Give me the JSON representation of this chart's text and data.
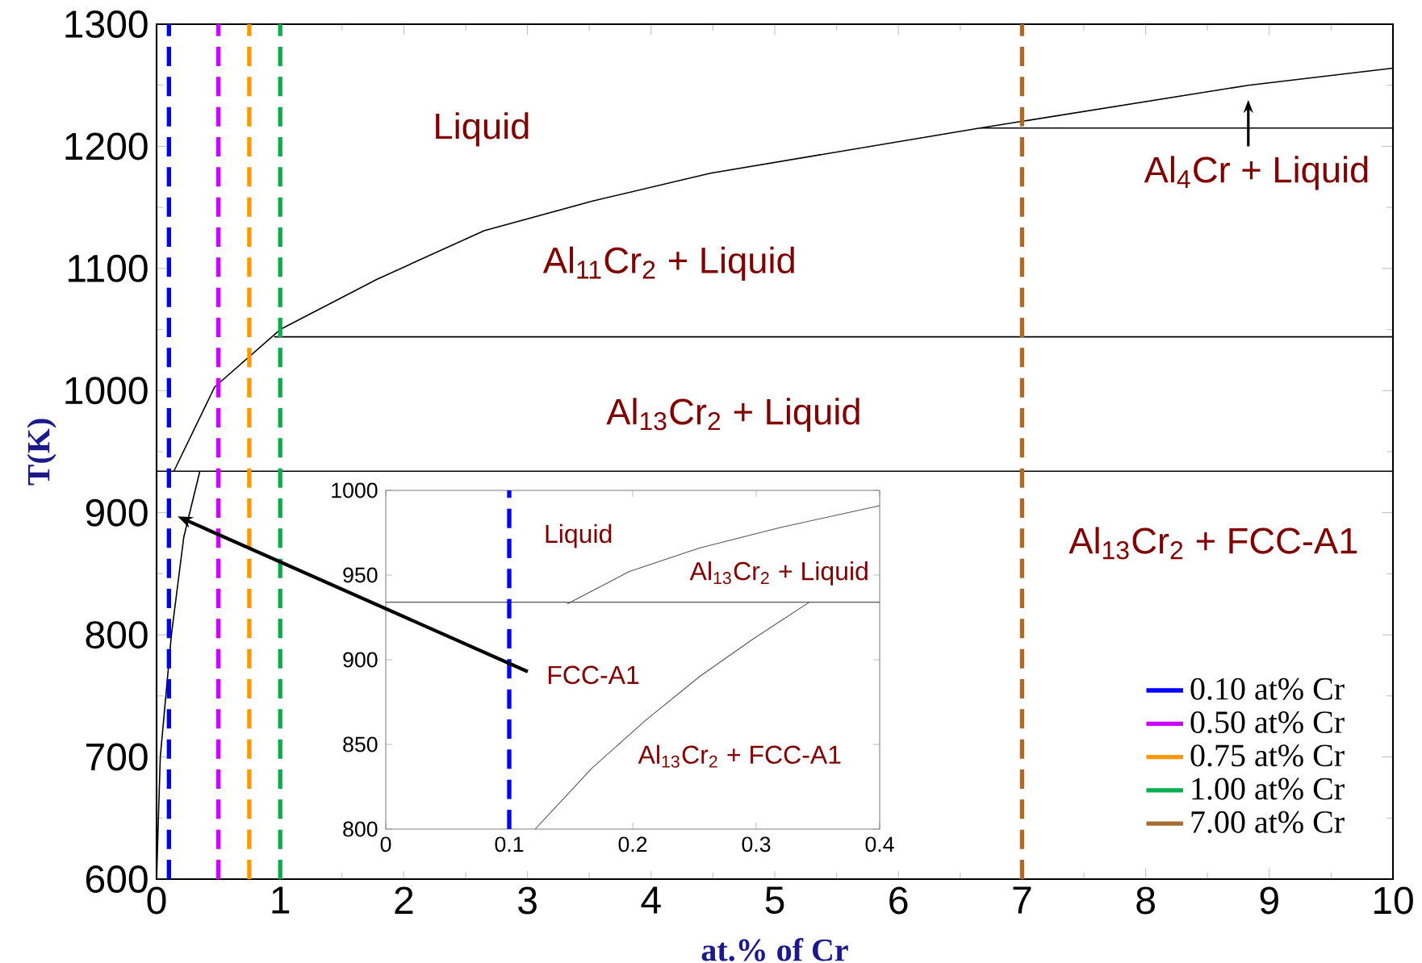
{
  "chart_data": [
    {
      "type": "line",
      "xlabel": "at.% of Cr",
      "ylabel": "T(K)",
      "xlim": [
        0,
        10
      ],
      "ylim": [
        600,
        1300
      ],
      "xticks": [
        0,
        1,
        2,
        3,
        4,
        5,
        6,
        7,
        8,
        9,
        10
      ],
      "yticks": [
        600,
        700,
        800,
        900,
        1000,
        1100,
        1200,
        1300
      ],
      "line_style": "solid",
      "marker": "none",
      "legend": "bottom right",
      "series": [
        {
          "color": "#000000",
          "x": [
            0.14,
            0.47,
            1.0,
            1.78,
            2.65,
            3.52,
            4.48,
            6.66,
            8.83,
            10
          ],
          "values": [
            934,
            1003,
            1050,
            1091,
            1131,
            1155,
            1178,
            1215,
            1250,
            1264
          ]
        },
        {
          "color": "#000000",
          "x": [
            0,
            0.03,
            0.12,
            0.22,
            0.35
          ],
          "values": [
            600,
            700,
            800,
            880,
            934
          ]
        },
        {
          "color": "#000000",
          "x": [
            0,
            10
          ],
          "values": [
            934,
            934
          ]
        },
        {
          "color": "#000000",
          "x": [
            0.95,
            10
          ],
          "values": [
            1044,
            1044
          ]
        },
        {
          "color": "#000000",
          "x": [
            6.66,
            10
          ],
          "values": [
            1215,
            1215
          ]
        },
        {
          "name": "0.10 at% Cr",
          "color": "#0000ff",
          "line_style": "dashed",
          "x": [
            0.1,
            0.1
          ],
          "values": [
            600,
            1300
          ]
        },
        {
          "name": "0.50 at% Cr",
          "color": "#cc00ff",
          "line_style": "dashed",
          "x": [
            0.5,
            0.5
          ],
          "values": [
            600,
            1300
          ]
        },
        {
          "name": "0.75 at% Cr",
          "color": "#ff9900",
          "line_style": "dashed",
          "x": [
            0.75,
            0.75
          ],
          "values": [
            600,
            1300
          ]
        },
        {
          "name": "1.00 at% Cr",
          "color": "#00b050",
          "line_style": "dashed",
          "x": [
            1.0,
            1.0
          ],
          "values": [
            600,
            1300
          ]
        },
        {
          "name": "7.00 at% Cr",
          "color": "#a86b32",
          "line_style": "dashed",
          "x": [
            7.0,
            7.0
          ],
          "values": [
            600,
            1300
          ]
        }
      ],
      "annotations": [
        "Liquid",
        "Al$_{11}$Cr$_{2}$ + Liquid",
        "Al$_{13}$Cr$_{2}$ + Liquid",
        "Al$_{4}$Cr + Liquid",
        "Al$_{13}$Cr$_{2}$ + FCC-A1"
      ]
    },
    {
      "type": "line",
      "xlim": [
        0,
        0.4
      ],
      "ylim": [
        800,
        1000
      ],
      "xticks": [
        0,
        0.1,
        0.2,
        0.3,
        0.4
      ],
      "yticks": [
        800,
        850,
        900,
        950,
        1000
      ],
      "line_style": "solid",
      "marker": "none",
      "series": [
        {
          "color": "#555555",
          "x": [
            0.147,
            0.197,
            0.254,
            0.319,
            0.4
          ],
          "values": [
            933,
            952,
            966,
            978,
            991
          ]
        },
        {
          "color": "#555555",
          "x": [
            0.121,
            0.167,
            0.21,
            0.254,
            0.297,
            0.343
          ],
          "values": [
            800,
            836,
            864,
            890,
            912,
            934
          ]
        },
        {
          "color": "#555555",
          "x": [
            0,
            0.4
          ],
          "values": [
            934,
            934
          ]
        }
      ],
      "ref_lines": [
        {
          "axis": "x",
          "value": 0.1,
          "color": "#0000ff",
          "line_style": "dashed"
        }
      ],
      "annotations": [
        "Liquid",
        "Al$_{13}$Cr$_{2}$ + Liquid",
        "FCC-A1",
        "Al$_{13}$Cr$_{2}$ + FCC-A1"
      ]
    }
  ]
}
